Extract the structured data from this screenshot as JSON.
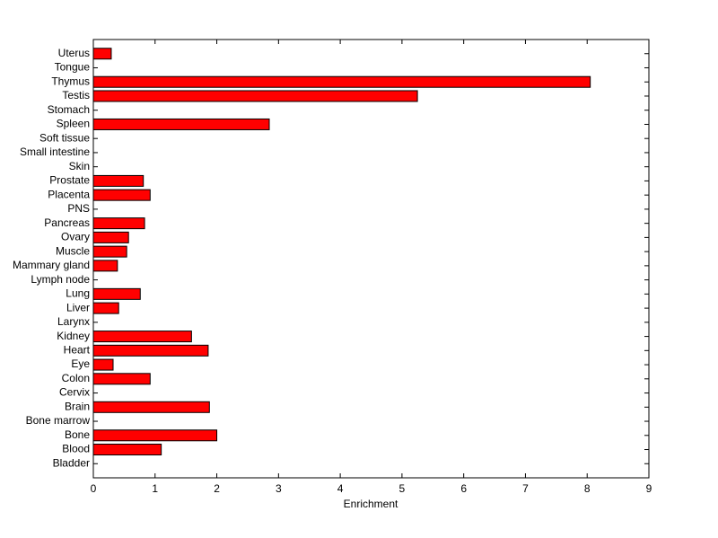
{
  "chart_data": {
    "type": "barh",
    "xlabel": "Enrichment",
    "categories": [
      "Bladder",
      "Blood",
      "Bone",
      "Bone marrow",
      "Brain",
      "Cervix",
      "Colon",
      "Eye",
      "Heart",
      "Kidney",
      "Larynx",
      "Liver",
      "Lung",
      "Lymph node",
      "Mammary gland",
      "Muscle",
      "Ovary",
      "Pancreas",
      "PNS",
      "Placenta",
      "Prostate",
      "Skin",
      "Small intestine",
      "Soft tissue",
      "Spleen",
      "Stomach",
      "Testis",
      "Thymus",
      "Tongue",
      "Uterus"
    ],
    "values": [
      0,
      1.1,
      2.0,
      0,
      1.88,
      0,
      0.92,
      0.32,
      1.86,
      1.59,
      0,
      0.41,
      0.76,
      0,
      0.39,
      0.54,
      0.57,
      0.83,
      0,
      0.92,
      0.81,
      0,
      0,
      0,
      2.85,
      0,
      5.25,
      8.05,
      0,
      0.29
    ],
    "color": "#ff0000",
    "xlim": [
      0,
      9
    ],
    "xticks": [
      0,
      1,
      2,
      3,
      4,
      5,
      6,
      7,
      8,
      9
    ]
  }
}
